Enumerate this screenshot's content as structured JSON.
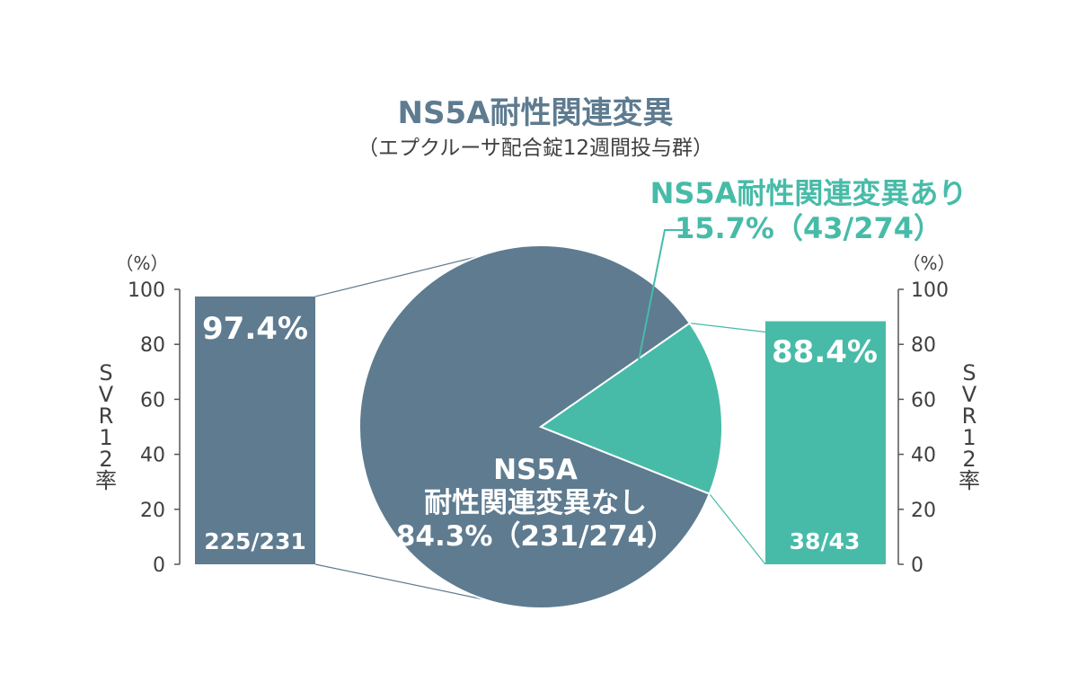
{
  "chart_data": {
    "type": "bar",
    "title": "NS5A耐性関連変異",
    "subtitle": "（エプクルーサ配合錠12週間投与群）",
    "colors": {
      "without": "#5e7b90",
      "with": "#47bba8",
      "text": "#404040",
      "axis": "#555555"
    },
    "pie": {
      "total": 274,
      "slices": [
        {
          "key": "without",
          "count": 231,
          "percent": 84.3,
          "label_lines": [
            "NS5A",
            "耐性関連変異なし",
            "84.3%（231/274）"
          ]
        },
        {
          "key": "with",
          "count": 43,
          "percent": 15.7,
          "label_lines": [
            "NS5A耐性関連変異あり",
            "15.7%（43/274）"
          ]
        }
      ]
    },
    "bars": [
      {
        "key": "without",
        "value": 97.4,
        "value_label": "97.4%",
        "count_label": "225/231"
      },
      {
        "key": "with",
        "value": 88.4,
        "value_label": "88.4%",
        "count_label": "38/43"
      }
    ],
    "axis": {
      "unit": "（%）",
      "ylim": [
        0,
        100
      ],
      "ticks": [
        "0",
        "20",
        "40",
        "60",
        "80",
        "100"
      ],
      "ylabel_chars": [
        "S",
        "V",
        "R",
        "1",
        "2",
        "率"
      ]
    }
  }
}
